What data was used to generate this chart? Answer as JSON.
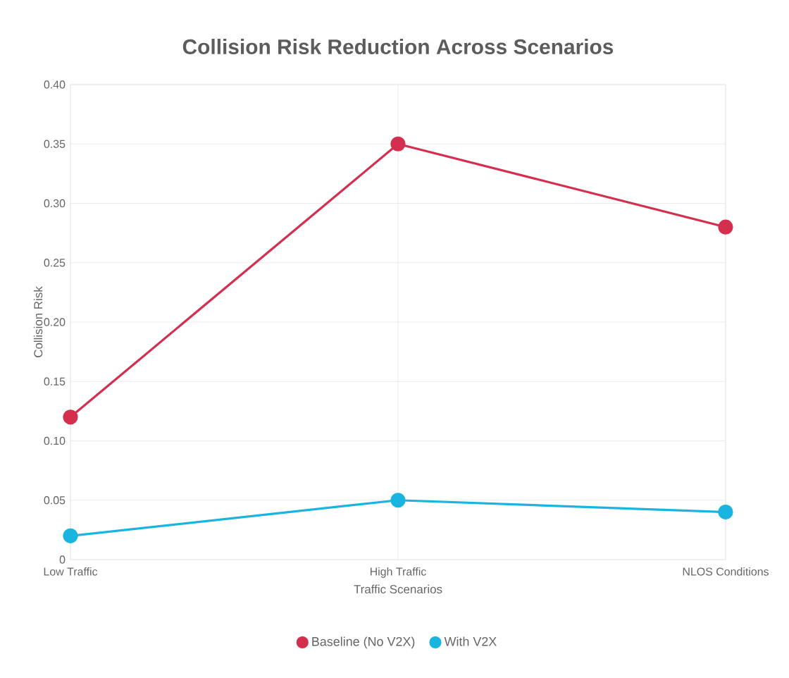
{
  "chart_data": {
    "type": "line",
    "title": "Collision Risk Reduction Across Scenarios",
    "xlabel": "Traffic Scenarios",
    "ylabel": "Collision Risk",
    "categories": [
      "Low Traffic",
      "High Traffic",
      "NLOS Conditions"
    ],
    "series": [
      {
        "name": "Baseline (No V2X)",
        "color": "#d42f4e",
        "values": [
          0.12,
          0.35,
          0.28
        ]
      },
      {
        "name": "With V2X",
        "color": "#19b5e0",
        "values": [
          0.02,
          0.05,
          0.04
        ]
      }
    ],
    "ylim": [
      0,
      0.4
    ],
    "yticks": [
      0,
      0.05,
      {
        "value": 0.1,
        "label": "0.10"
      },
      0.15,
      {
        "value": 0.2,
        "label": "0.20"
      },
      0.25,
      {
        "value": 0.3,
        "label": "0.30"
      },
      0.35,
      {
        "value": 0.4,
        "label": "0.40"
      }
    ],
    "grid": true,
    "legend": "bottom",
    "marker": "circle",
    "line_style": "solid"
  }
}
